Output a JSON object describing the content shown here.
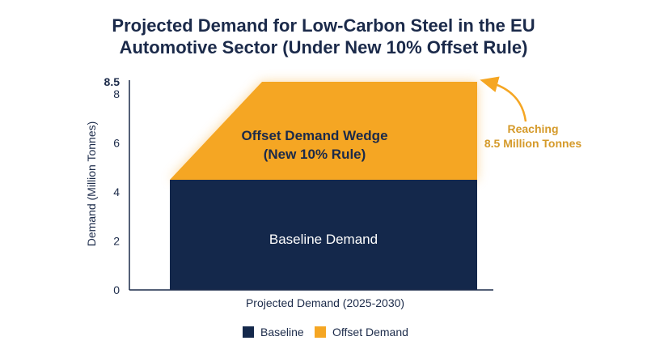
{
  "chart_data": {
    "type": "area",
    "title_lines": [
      "Projected Demand for Low-Carbon Steel in the EU",
      "Automotive Sector (Under New 10% Offset Rule)"
    ],
    "xlabel": "Projected Demand (2025-2030)",
    "ylabel": "Demand (Million Tonnes)",
    "ylim": [
      0,
      8.5
    ],
    "yticks": [
      {
        "value": 0,
        "label": "0"
      },
      {
        "value": 2,
        "label": "2"
      },
      {
        "value": 4,
        "label": "4"
      },
      {
        "value": 6,
        "label": "6"
      },
      {
        "value": 8,
        "label": "8"
      },
      {
        "value": 8.5,
        "label": "8.5"
      }
    ],
    "x": [
      2025,
      2026.5,
      2030
    ],
    "series": [
      {
        "name": "Baseline",
        "values": [
          4.5,
          4.5,
          4.5
        ],
        "color": "#14284b"
      },
      {
        "name": "Offset Demand",
        "values": [
          0,
          4.0,
          4.0
        ],
        "color": "#f5a623"
      }
    ],
    "annotations": {
      "wedge_label": [
        "Offset Demand Wedge",
        "(New 10% Rule)"
      ],
      "baseline_label": "Baseline Demand",
      "callout_label": [
        "Reaching",
        "8.5 Million Tonnes"
      ]
    },
    "legend": {
      "position": "bottom",
      "items": [
        {
          "label": "Baseline",
          "color": "#14284b"
        },
        {
          "label": "Offset Demand",
          "color": "#f5a623"
        }
      ]
    },
    "grid": false
  }
}
